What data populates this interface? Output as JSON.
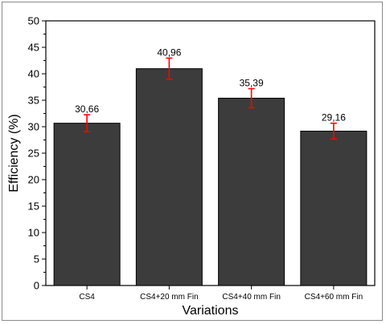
{
  "chart_data": {
    "type": "bar",
    "categories": [
      "CS4",
      "CS4+20 mm Fin",
      "CS4+40 mm Fin",
      "CS4+60 mm Fin"
    ],
    "values": [
      30.66,
      40.96,
      35.39,
      29.16
    ],
    "data_labels": [
      "30,66",
      "40,96",
      "35,39",
      "29,16"
    ],
    "error": [
      1.6,
      2.0,
      1.8,
      1.5
    ],
    "title": "",
    "xlabel": "Variations",
    "ylabel": "Efficiency (%)",
    "ylim": [
      0,
      50
    ],
    "yticks": [
      0,
      5,
      10,
      15,
      20,
      25,
      30,
      35,
      40,
      45,
      50
    ],
    "grid": false,
    "bar_color": "#3c3c3c",
    "error_color": "#ff0000"
  }
}
